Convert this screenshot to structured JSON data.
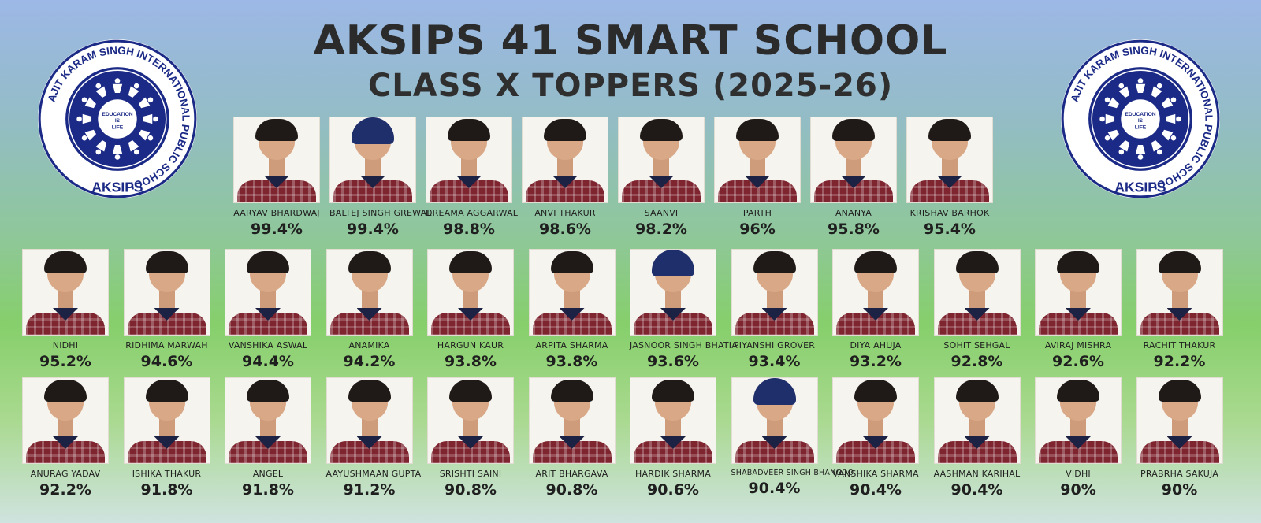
{
  "header": {
    "title": "AKSIPS 41 SMART SCHOOL",
    "subtitle": "CLASS X TOPPERS (2025-26)"
  },
  "logo": {
    "ring_text": "AJIT KARAM SINGH INTERNATIONAL PUBLIC SCHOOL",
    "center_text": "EDUCATION IS LIFE",
    "bottom_text": "AKSIPS",
    "colors": {
      "navy": "#1b2a86",
      "white": "#ffffff"
    }
  },
  "rows": [
    [
      {
        "name": "AARYAV BHARDWAJ",
        "percent": "99.4%",
        "headwear": "hair"
      },
      {
        "name": "BALTEJ SINGH GREWAL",
        "percent": "99.4%",
        "headwear": "turban"
      },
      {
        "name": "DREAMA AGGARWAL",
        "percent": "98.8%",
        "headwear": "hair"
      },
      {
        "name": "ANVI THAKUR",
        "percent": "98.6%",
        "headwear": "hair"
      },
      {
        "name": "SAANVI",
        "percent": "98.2%",
        "headwear": "hair"
      },
      {
        "name": "PARTH",
        "percent": "96%",
        "headwear": "hair"
      },
      {
        "name": "ANANYA",
        "percent": "95.8%",
        "headwear": "hair"
      },
      {
        "name": "KRISHAV BARHOK",
        "percent": "95.4%",
        "headwear": "hair"
      }
    ],
    [
      {
        "name": "NIDHI",
        "percent": "95.2%",
        "headwear": "hair"
      },
      {
        "name": "RIDHIMA MARWAH",
        "percent": "94.6%",
        "headwear": "hair"
      },
      {
        "name": "VANSHIKA ASWAL",
        "percent": "94.4%",
        "headwear": "hair"
      },
      {
        "name": "ANAMIKA",
        "percent": "94.2%",
        "headwear": "hair"
      },
      {
        "name": "HARGUN KAUR",
        "percent": "93.8%",
        "headwear": "hair"
      },
      {
        "name": "ARPITA SHARMA",
        "percent": "93.8%",
        "headwear": "hair"
      },
      {
        "name": "JASNOOR SINGH BHATIA",
        "percent": "93.6%",
        "headwear": "turban"
      },
      {
        "name": "PIYANSHI GROVER",
        "percent": "93.4%",
        "headwear": "hair"
      },
      {
        "name": "DIYA AHUJA",
        "percent": "93.2%",
        "headwear": "hair"
      },
      {
        "name": "SOHIT SEHGAL",
        "percent": "92.8%",
        "headwear": "hair"
      },
      {
        "name": "AVIRAJ MISHRA",
        "percent": "92.6%",
        "headwear": "hair"
      },
      {
        "name": "RACHIT THAKUR",
        "percent": "92.2%",
        "headwear": "hair"
      }
    ],
    [
      {
        "name": "ANURAG YADAV",
        "percent": "92.2%",
        "headwear": "hair"
      },
      {
        "name": "ISHIKA THAKUR",
        "percent": "91.8%",
        "headwear": "hair"
      },
      {
        "name": "ANGEL",
        "percent": "91.8%",
        "headwear": "hair"
      },
      {
        "name": "AAYUSHMAAN GUPTA",
        "percent": "91.2%",
        "headwear": "hair"
      },
      {
        "name": "SRISHTI SAINI",
        "percent": "90.8%",
        "headwear": "hair"
      },
      {
        "name": "ARIT BHARGAVA",
        "percent": "90.8%",
        "headwear": "hair"
      },
      {
        "name": "HARDIK SHARMA",
        "percent": "90.6%",
        "headwear": "hair"
      },
      {
        "name": "SHABADVEER SINGH BHANGOO",
        "percent": "90.4%",
        "headwear": "turban"
      },
      {
        "name": "VANSHIKA SHARMA",
        "percent": "90.4%",
        "headwear": "hair"
      },
      {
        "name": "AASHMAN KARIHAL",
        "percent": "90.4%",
        "headwear": "hair"
      },
      {
        "name": "VIDHI",
        "percent": "90%",
        "headwear": "hair"
      },
      {
        "name": "PRABRHA SAKUJA",
        "percent": "90%",
        "headwear": "hair"
      }
    ]
  ]
}
